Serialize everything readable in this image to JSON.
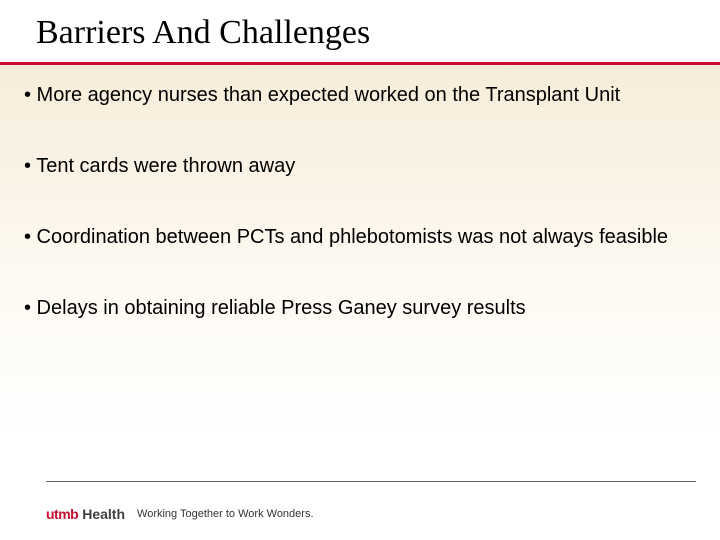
{
  "slide": {
    "title": "Barriers And Challenges",
    "title_font": "Garamond",
    "title_fontsize": 34,
    "title_color": "#000000",
    "rule_color": "#c8102e",
    "content_bg_gradient_top": "#f6ecd9",
    "content_bg_gradient_mid": "#fdf9f1",
    "content_bg_gradient_bottom": "#ffffff",
    "bullets": [
      "• More agency nurses than expected worked on the Transplant Unit",
      "• Tent cards were thrown away",
      "• Coordination between PCTs and phlebotomists was not always feasible",
      "• Delays in obtaining reliable Press Ganey survey results"
    ],
    "bullet_fontsize": 20,
    "bullet_color": "#000000"
  },
  "footer": {
    "rule_color": "#666666",
    "logo_utmb": "utmb",
    "logo_utmb_color": "#c8102e",
    "logo_health": "Health",
    "logo_health_color": "#404040",
    "tagline": "Working Together to Work Wonders.",
    "tagline_fontsize": 11,
    "tagline_color": "#333333"
  }
}
